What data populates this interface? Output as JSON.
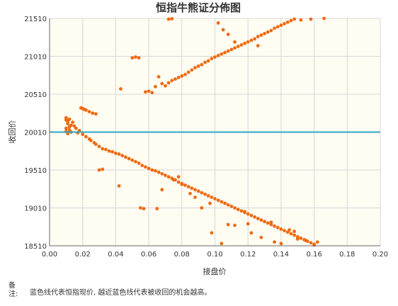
{
  "chart_data": {
    "type": "scatter",
    "title": "恒指牛熊证分佈图",
    "xlabel": "接盘价",
    "ylabel": "收回价",
    "xlim": [
      0,
      0.2
    ],
    "ylim": [
      18510,
      21510
    ],
    "x_ticks": [
      "0.00",
      "0.02",
      "0.04",
      "0.06",
      "0.08",
      "0.10",
      "0.12",
      "0.14",
      "0.16",
      "0.18",
      "0.20"
    ],
    "y_ticks": [
      "18510",
      "19010",
      "19510",
      "20010",
      "20510",
      "21010",
      "21510"
    ],
    "grid": true,
    "reference_line": {
      "value": 20010,
      "color": "#2aa8c8"
    },
    "point_color": "#ee6a10",
    "plot_background": "#fffcf2",
    "series": [
      {
        "values": [
          [
            0.01,
            20200
          ],
          [
            0.01,
            20170
          ],
          [
            0.011,
            20150
          ],
          [
            0.012,
            20180
          ],
          [
            0.011,
            20120
          ],
          [
            0.013,
            20100
          ],
          [
            0.012,
            20080
          ],
          [
            0.01,
            20060
          ],
          [
            0.014,
            20140
          ],
          [
            0.015,
            20090
          ],
          [
            0.01,
            20020
          ],
          [
            0.012,
            20040
          ],
          [
            0.016,
            20060
          ],
          [
            0.018,
            20030
          ],
          [
            0.011,
            19990
          ],
          [
            0.013,
            20010
          ],
          [
            0.017,
            20000
          ],
          [
            0.02,
            19980
          ],
          [
            0.022,
            19950
          ],
          [
            0.024,
            19920
          ],
          [
            0.025,
            19900
          ],
          [
            0.027,
            19870
          ],
          [
            0.028,
            19850
          ],
          [
            0.03,
            19820
          ],
          [
            0.032,
            19790
          ],
          [
            0.034,
            19780
          ],
          [
            0.036,
            19760
          ],
          [
            0.038,
            19750
          ],
          [
            0.04,
            19730
          ],
          [
            0.042,
            19720
          ],
          [
            0.044,
            19700
          ],
          [
            0.046,
            19680
          ],
          [
            0.048,
            19660
          ],
          [
            0.05,
            19640
          ],
          [
            0.052,
            19620
          ],
          [
            0.054,
            19600
          ],
          [
            0.056,
            19570
          ],
          [
            0.058,
            19550
          ],
          [
            0.06,
            19530
          ],
          [
            0.062,
            19510
          ],
          [
            0.064,
            19500
          ],
          [
            0.066,
            19480
          ],
          [
            0.068,
            19460
          ],
          [
            0.07,
            19440
          ],
          [
            0.072,
            19420
          ],
          [
            0.074,
            19400
          ],
          [
            0.076,
            19380
          ],
          [
            0.078,
            19350
          ],
          [
            0.08,
            19330
          ],
          [
            0.082,
            19310
          ],
          [
            0.084,
            19290
          ],
          [
            0.086,
            19270
          ],
          [
            0.088,
            19250
          ],
          [
            0.09,
            19230
          ],
          [
            0.092,
            19210
          ],
          [
            0.094,
            19190
          ],
          [
            0.096,
            19170
          ],
          [
            0.098,
            19150
          ],
          [
            0.1,
            19130
          ],
          [
            0.102,
            19110
          ],
          [
            0.104,
            19090
          ],
          [
            0.106,
            19070
          ],
          [
            0.108,
            19050
          ],
          [
            0.11,
            19030
          ],
          [
            0.112,
            19010
          ],
          [
            0.114,
            18990
          ],
          [
            0.116,
            18970
          ],
          [
            0.118,
            18950
          ],
          [
            0.12,
            18930
          ],
          [
            0.122,
            18910
          ],
          [
            0.124,
            18890
          ],
          [
            0.126,
            18870
          ],
          [
            0.128,
            18850
          ],
          [
            0.13,
            18830
          ],
          [
            0.132,
            18810
          ],
          [
            0.134,
            18790
          ],
          [
            0.136,
            18770
          ],
          [
            0.138,
            18750
          ],
          [
            0.14,
            18730
          ],
          [
            0.142,
            18710
          ],
          [
            0.144,
            18690
          ],
          [
            0.146,
            18670
          ],
          [
            0.148,
            18650
          ],
          [
            0.15,
            18630
          ],
          [
            0.152,
            18610
          ],
          [
            0.154,
            18590
          ],
          [
            0.156,
            18570
          ],
          [
            0.158,
            18550
          ],
          [
            0.16,
            18530
          ],
          [
            0.162,
            18560
          ],
          [
            0.02,
            20320
          ],
          [
            0.022,
            20300
          ],
          [
            0.024,
            20280
          ],
          [
            0.026,
            20260
          ],
          [
            0.028,
            20250
          ],
          [
            0.021,
            20310
          ],
          [
            0.019,
            20330
          ],
          [
            0.043,
            20580
          ],
          [
            0.05,
            20990
          ],
          [
            0.052,
            21000
          ],
          [
            0.054,
            20990
          ],
          [
            0.058,
            20540
          ],
          [
            0.06,
            20550
          ],
          [
            0.062,
            20530
          ],
          [
            0.064,
            20610
          ],
          [
            0.066,
            20740
          ],
          [
            0.068,
            20650
          ],
          [
            0.07,
            20620
          ],
          [
            0.072,
            20660
          ],
          [
            0.074,
            20690
          ],
          [
            0.076,
            20710
          ],
          [
            0.078,
            20730
          ],
          [
            0.08,
            20750
          ],
          [
            0.082,
            20770
          ],
          [
            0.084,
            20800
          ],
          [
            0.086,
            20830
          ],
          [
            0.088,
            20860
          ],
          [
            0.09,
            20880
          ],
          [
            0.092,
            20900
          ],
          [
            0.094,
            20930
          ],
          [
            0.096,
            20950
          ],
          [
            0.098,
            20980
          ],
          [
            0.1,
            21000
          ],
          [
            0.102,
            21020
          ],
          [
            0.104,
            21040
          ],
          [
            0.106,
            21060
          ],
          [
            0.108,
            21080
          ],
          [
            0.11,
            21100
          ],
          [
            0.112,
            21120
          ],
          [
            0.114,
            21140
          ],
          [
            0.116,
            21160
          ],
          [
            0.118,
            21180
          ],
          [
            0.12,
            21200
          ],
          [
            0.122,
            21220
          ],
          [
            0.124,
            21240
          ],
          [
            0.126,
            21270
          ],
          [
            0.128,
            21290
          ],
          [
            0.13,
            21310
          ],
          [
            0.132,
            21330
          ],
          [
            0.134,
            21350
          ],
          [
            0.136,
            21380
          ],
          [
            0.138,
            21400
          ],
          [
            0.14,
            21420
          ],
          [
            0.142,
            21440
          ],
          [
            0.144,
            21460
          ],
          [
            0.146,
            21480
          ],
          [
            0.148,
            21500
          ],
          [
            0.072,
            21500
          ],
          [
            0.074,
            21505
          ],
          [
            0.105,
            21360
          ],
          [
            0.108,
            21300
          ],
          [
            0.102,
            21450
          ],
          [
            0.112,
            21200
          ],
          [
            0.126,
            21150
          ],
          [
            0.152,
            21490
          ],
          [
            0.158,
            21500
          ],
          [
            0.166,
            21510
          ],
          [
            0.03,
            19510
          ],
          [
            0.032,
            19520
          ],
          [
            0.042,
            19300
          ],
          [
            0.055,
            19010
          ],
          [
            0.057,
            19000
          ],
          [
            0.065,
            19000
          ],
          [
            0.068,
            19250
          ],
          [
            0.08,
            19320
          ],
          [
            0.085,
            19200
          ],
          [
            0.092,
            19010
          ],
          [
            0.098,
            18680
          ],
          [
            0.104,
            18540
          ],
          [
            0.108,
            18790
          ],
          [
            0.112,
            18780
          ],
          [
            0.12,
            18800
          ],
          [
            0.122,
            18680
          ],
          [
            0.128,
            18620
          ],
          [
            0.136,
            18560
          ],
          [
            0.14,
            18540
          ],
          [
            0.145,
            18720
          ],
          [
            0.15,
            18600
          ],
          [
            0.155,
            18580
          ],
          [
            0.16,
            18520
          ],
          [
            0.148,
            18700
          ],
          [
            0.134,
            18820
          ],
          [
            0.118,
            18960
          ],
          [
            0.097,
            19070
          ],
          [
            0.088,
            19150
          ],
          [
            0.078,
            19420
          ],
          [
            0.075,
            19380
          ]
        ]
      }
    ]
  },
  "note": {
    "prefix": "备注:",
    "text": "蓝色线代表恒指现价, 越近蓝色线代表被收回的机会越高。"
  }
}
